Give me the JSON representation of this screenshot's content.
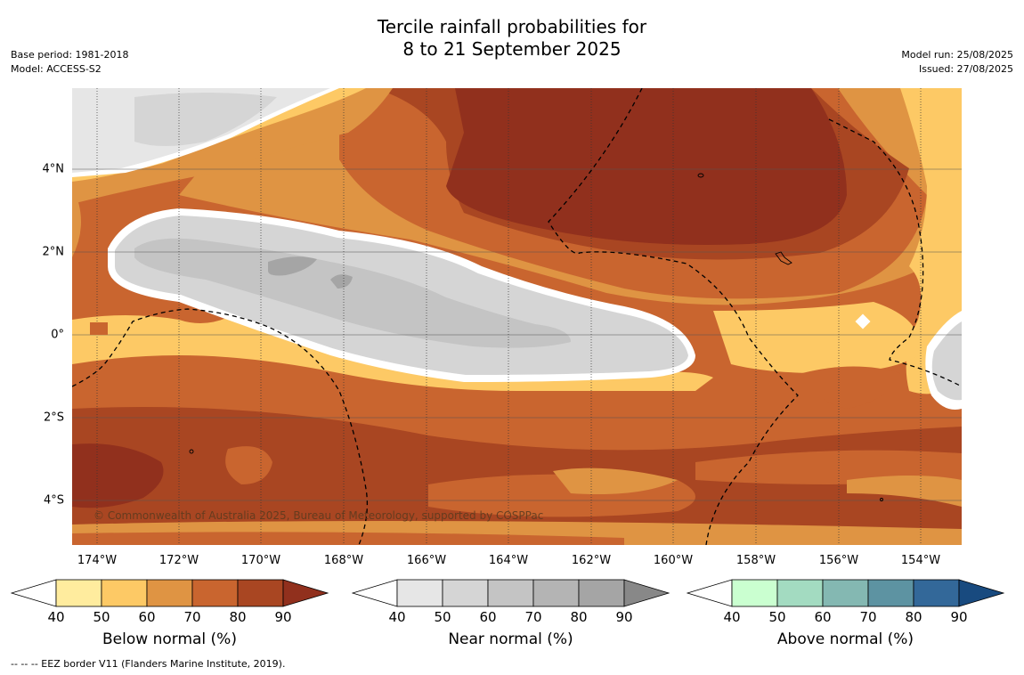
{
  "title_line1": "Tercile rainfall probabilities for",
  "title_line2": "8 to 21 September 2025",
  "meta_left": {
    "base_period": "Base period: 1981-2018",
    "model": "Model: ACCESS-S2"
  },
  "meta_right": {
    "model_run": "Model run: 25/08/2025",
    "issued": "Issued: 27/08/2025"
  },
  "map": {
    "lat_labels": [
      "4°N",
      "2°N",
      "0°",
      "2°S",
      "4°S"
    ],
    "lon_labels": [
      "174°W",
      "172°W",
      "170°W",
      "168°W",
      "166°W",
      "164°W",
      "162°W",
      "160°W",
      "158°W",
      "156°W",
      "154°W"
    ],
    "copyright": "© Commonwealth of Australia 2025, Bureau of Meteorology, supported by COSPPac"
  },
  "colorbars": [
    {
      "title": "Below normal (%)",
      "ticks": [
        "40",
        "50",
        "60",
        "70",
        "80",
        "90"
      ],
      "colors": [
        "#ffec9e",
        "#fdc965",
        "#df9443",
        "#c9652f",
        "#a94622",
        "#91301d"
      ]
    },
    {
      "title": "Near normal (%)",
      "ticks": [
        "40",
        "50",
        "60",
        "70",
        "80",
        "90"
      ],
      "colors": [
        "#e6e6e6",
        "#d5d5d5",
        "#c4c4c4",
        "#b4b4b4",
        "#a5a5a5",
        "#888888"
      ]
    },
    {
      "title": "Above normal (%)",
      "ticks": [
        "40",
        "50",
        "60",
        "70",
        "80",
        "90"
      ],
      "colors": [
        "#caffd0",
        "#a3dbc1",
        "#84b8b2",
        "#5d93a2",
        "#336899",
        "#184a7f"
      ]
    }
  ],
  "footnote": "--  --  -- EEZ border V11 (Flanders Marine Institute, 2019)."
}
